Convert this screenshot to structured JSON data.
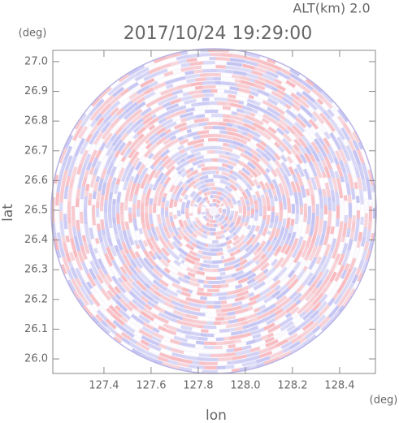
{
  "chart_data": {
    "type": "polar-field",
    "title": "2017/10/24 19:29:00",
    "annotation": "ALT(km) 2.0",
    "xlabel": "lon",
    "ylabel": "lat",
    "xunit": "(deg)",
    "yunit": "(deg)",
    "xlim": [
      127.183,
      128.552
    ],
    "ylim": [
      25.951,
      27.038
    ],
    "xticks": [
      127.4,
      127.6,
      127.8,
      {
        "value": 128,
        "label": "128.0"
      },
      128.2,
      128.4
    ],
    "yticks": [
      {
        "value": 26,
        "label": "26.0"
      },
      26.1,
      26.2,
      26.3,
      26.4,
      26.5,
      26.6,
      26.7,
      26.8,
      26.9,
      {
        "value": 27,
        "label": "27.0"
      }
    ]
  }
}
